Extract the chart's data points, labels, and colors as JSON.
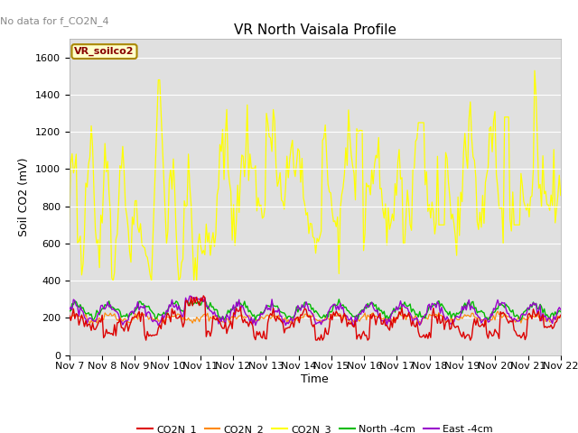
{
  "title": "VR North Vaisala Profile",
  "ylabel": "Soil CO2 (mV)",
  "xlabel": "Time",
  "top_label": "No data for f_CO2N_4",
  "legend_label": "VR_soilco2",
  "ylim": [
    0,
    1700
  ],
  "xlim": [
    0,
    360
  ],
  "xtick_labels": [
    "Nov 7",
    "Nov 8",
    "Nov 9",
    "Nov 10",
    "Nov 11",
    "Nov 12",
    "Nov 13",
    "Nov 14",
    "Nov 15",
    "Nov 16",
    "Nov 17",
    "Nov 18",
    "Nov 19",
    "Nov 20",
    "Nov 21",
    "Nov 22"
  ],
  "background_color": "#e0e0e0",
  "fig_background": "#ffffff",
  "series_colors": {
    "CO2N_1": "#dd0000",
    "CO2N_2": "#ff8800",
    "CO2N_3": "#ffff00",
    "North_4cm": "#00bb00",
    "East_4cm": "#9900cc"
  },
  "legend_entries": [
    {
      "label": "CO2N_1",
      "color": "#dd0000"
    },
    {
      "label": "CO2N_2",
      "color": "#ff8800"
    },
    {
      "label": "CO2N_3",
      "color": "#ffff00"
    },
    {
      "label": "North -4cm",
      "color": "#00bb00"
    },
    {
      "label": "East -4cm",
      "color": "#9900cc"
    }
  ],
  "grid_color": "#ffffff",
  "yticks": [
    0,
    200,
    400,
    600,
    800,
    1000,
    1200,
    1400,
    1600
  ]
}
